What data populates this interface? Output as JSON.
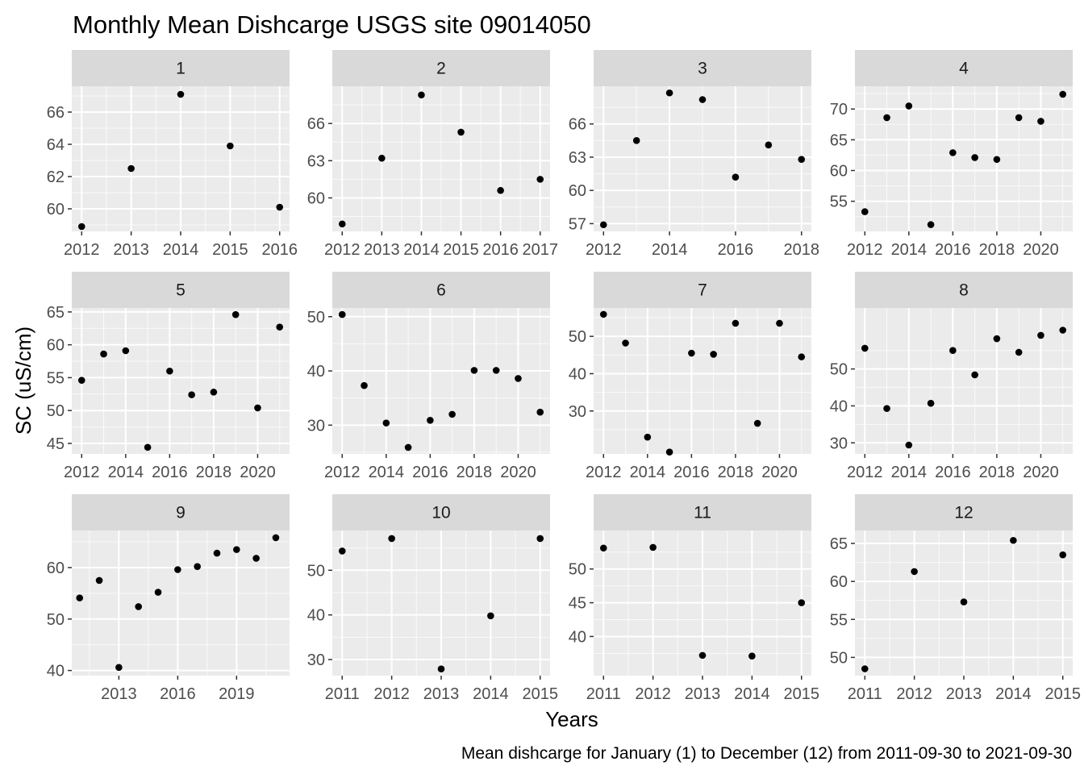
{
  "chart_data": {
    "type": "scatter",
    "title": "Monthly Mean Dishcarge USGS site 09014050",
    "xlabel": "Years",
    "ylabel": "SC (uS/cm)",
    "caption": "Mean dishcarge for January (1) to December (12) from 2011-09-30 to 2021-09-30",
    "grid": true,
    "facet_layout": "3 rows x 4 columns, free scales",
    "colors": {
      "panel_background": "#ebebeb",
      "grid_major": "#ffffff",
      "strip_background": "#d9d9d9",
      "point": "#000000",
      "tick_text": "#4d4d4d"
    },
    "panels": [
      {
        "strip": "1",
        "xlim": [
          2011.8,
          2016.2
        ],
        "ylim": [
          58.6,
          67.6
        ],
        "x_ticks": [
          2012,
          2013,
          2014,
          2015,
          2016
        ],
        "y_ticks": [
          60,
          62,
          64,
          66
        ],
        "points": [
          [
            2012,
            58.9
          ],
          [
            2013,
            62.5
          ],
          [
            2014,
            67.1
          ],
          [
            2015,
            63.9
          ],
          [
            2016,
            60.1
          ]
        ]
      },
      {
        "strip": "2",
        "xlim": [
          2011.75,
          2017.25
        ],
        "ylim": [
          57.3,
          69.0
        ],
        "x_ticks": [
          2012,
          2013,
          2014,
          2015,
          2016,
          2017
        ],
        "y_ticks": [
          60,
          63,
          66
        ],
        "points": [
          [
            2012,
            57.9
          ],
          [
            2013,
            63.2
          ],
          [
            2014,
            68.3
          ],
          [
            2015,
            65.3
          ],
          [
            2016,
            60.6
          ],
          [
            2017,
            61.5
          ]
        ]
      },
      {
        "strip": "3",
        "xlim": [
          2011.7,
          2018.3
        ],
        "ylim": [
          56.3,
          69.4
        ],
        "x_ticks": [
          2012,
          2014,
          2016,
          2018
        ],
        "y_ticks": [
          57,
          60,
          63,
          66
        ],
        "points": [
          [
            2012,
            56.9
          ],
          [
            2013,
            64.5
          ],
          [
            2014,
            68.8
          ],
          [
            2015,
            68.2
          ],
          [
            2016,
            61.2
          ],
          [
            2017,
            64.1
          ],
          [
            2018,
            62.8
          ]
        ]
      },
      {
        "strip": "4",
        "xlim": [
          2011.55,
          2021.45
        ],
        "ylim": [
          50.1,
          73.7
        ],
        "x_ticks": [
          2012,
          2014,
          2016,
          2018,
          2020
        ],
        "y_ticks": [
          55,
          60,
          65,
          70
        ],
        "points": [
          [
            2012,
            53.3
          ],
          [
            2013,
            68.6
          ],
          [
            2014,
            70.5
          ],
          [
            2015,
            51.2
          ],
          [
            2016,
            62.9
          ],
          [
            2017,
            62.1
          ],
          [
            2018,
            61.8
          ],
          [
            2019,
            68.6
          ],
          [
            2020,
            68.0
          ],
          [
            2021,
            72.4
          ]
        ]
      },
      {
        "strip": "5",
        "xlim": [
          2011.55,
          2021.45
        ],
        "ylim": [
          43.4,
          65.6
        ],
        "x_ticks": [
          2012,
          2014,
          2016,
          2018,
          2020
        ],
        "y_ticks": [
          45,
          50,
          55,
          60,
          65
        ],
        "points": [
          [
            2012,
            54.6
          ],
          [
            2013,
            58.6
          ],
          [
            2014,
            59.1
          ],
          [
            2015,
            44.4
          ],
          [
            2016,
            56.0
          ],
          [
            2017,
            52.4
          ],
          [
            2018,
            52.8
          ],
          [
            2019,
            64.6
          ],
          [
            2020,
            50.4
          ],
          [
            2021,
            62.7
          ]
        ]
      },
      {
        "strip": "6",
        "xlim": [
          2011.55,
          2021.45
        ],
        "ylim": [
          24.7,
          51.6
        ],
        "x_ticks": [
          2012,
          2014,
          2016,
          2018,
          2020
        ],
        "y_ticks": [
          30,
          40,
          50
        ],
        "points": [
          [
            2012,
            50.4
          ],
          [
            2013,
            37.3
          ],
          [
            2014,
            30.4
          ],
          [
            2015,
            25.9
          ],
          [
            2016,
            30.9
          ],
          [
            2017,
            32.0
          ],
          [
            2018,
            40.1
          ],
          [
            2019,
            40.1
          ],
          [
            2020,
            38.6
          ],
          [
            2021,
            32.4
          ]
        ]
      },
      {
        "strip": "7",
        "xlim": [
          2011.55,
          2021.45
        ],
        "ylim": [
          18.5,
          57.6
        ],
        "x_ticks": [
          2012,
          2014,
          2016,
          2018,
          2020
        ],
        "y_ticks": [
          30,
          40,
          50
        ],
        "points": [
          [
            2012,
            55.9
          ],
          [
            2013,
            48.2
          ],
          [
            2014,
            23.0
          ],
          [
            2015,
            19.0
          ],
          [
            2016,
            45.5
          ],
          [
            2017,
            45.2
          ],
          [
            2018,
            53.5
          ],
          [
            2019,
            26.7
          ],
          [
            2020,
            53.5
          ],
          [
            2021,
            44.5
          ]
        ]
      },
      {
        "strip": "8",
        "xlim": [
          2011.55,
          2021.45
        ],
        "ylim": [
          27.0,
          66.5
        ],
        "x_ticks": [
          2012,
          2014,
          2016,
          2018,
          2020
        ],
        "y_ticks": [
          30,
          40,
          50
        ],
        "points": [
          [
            2012,
            55.6
          ],
          [
            2013,
            39.3
          ],
          [
            2014,
            29.4
          ],
          [
            2015,
            40.7
          ],
          [
            2016,
            55.0
          ],
          [
            2017,
            48.4
          ],
          [
            2018,
            58.2
          ],
          [
            2019,
            54.5
          ],
          [
            2020,
            59.1
          ],
          [
            2021,
            60.5
          ]
        ]
      },
      {
        "strip": "9",
        "xlim": [
          2010.6,
          2021.7
        ],
        "ylim": [
          39.0,
          67.2
        ],
        "x_ticks": [
          2013,
          2016,
          2019
        ],
        "y_ticks": [
          40,
          50,
          60
        ],
        "points": [
          [
            2011,
            54.1
          ],
          [
            2012,
            57.5
          ],
          [
            2013,
            40.6
          ],
          [
            2014,
            52.4
          ],
          [
            2015,
            55.2
          ],
          [
            2016,
            59.6
          ],
          [
            2017,
            60.2
          ],
          [
            2018,
            62.8
          ],
          [
            2019,
            63.5
          ],
          [
            2020,
            61.8
          ],
          [
            2021,
            65.8
          ]
        ]
      },
      {
        "strip": "10",
        "xlim": [
          2010.8,
          2015.2
        ],
        "ylim": [
          26.4,
          58.9
        ],
        "x_ticks": [
          2011,
          2012,
          2013,
          2014,
          2015
        ],
        "y_ticks": [
          30,
          40,
          50
        ],
        "points": [
          [
            2011,
            54.3
          ],
          [
            2012,
            57.1
          ],
          [
            2013,
            27.9
          ],
          [
            2014,
            39.8
          ],
          [
            2015,
            57.1
          ]
        ]
      },
      {
        "strip": "11",
        "xlim": [
          2010.8,
          2015.2
        ],
        "ylim": [
          34.2,
          55.7
        ],
        "x_ticks": [
          2011,
          2012,
          2013,
          2014,
          2015
        ],
        "y_ticks": [
          40,
          45,
          50
        ],
        "points": [
          [
            2011,
            53.1
          ],
          [
            2012,
            53.2
          ],
          [
            2013,
            37.2
          ],
          [
            2014,
            37.1
          ],
          [
            2015,
            45.0
          ]
        ]
      },
      {
        "strip": "12",
        "xlim": [
          2010.8,
          2015.2
        ],
        "ylim": [
          47.6,
          66.7
        ],
        "x_ticks": [
          2011,
          2012,
          2013,
          2014,
          2015
        ],
        "y_ticks": [
          50,
          55,
          60,
          65
        ],
        "points": [
          [
            2011,
            48.5
          ],
          [
            2012,
            61.3
          ],
          [
            2013,
            57.3
          ],
          [
            2014,
            65.4
          ],
          [
            2015,
            63.5
          ]
        ]
      }
    ]
  }
}
